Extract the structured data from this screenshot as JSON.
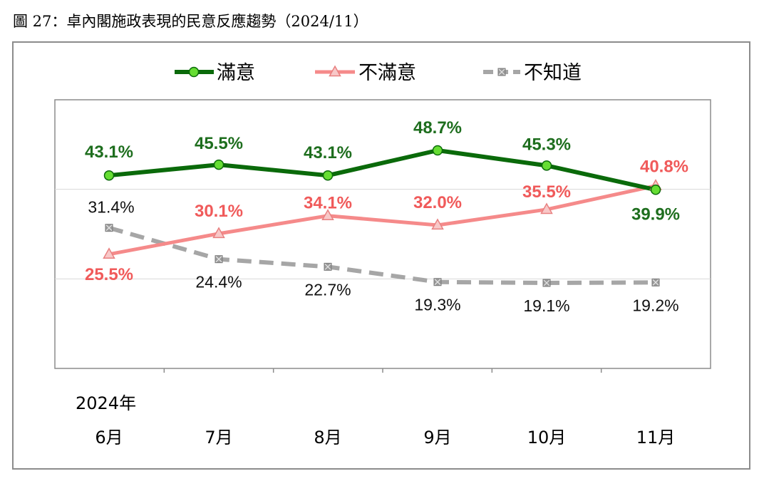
{
  "figure_title": "圖 27：卓內閣施政表現的民意反應趨勢（2024/11）",
  "colors": {
    "satisfied": "#0a6a0a",
    "satisfied_marker": "#66dd33",
    "dissatisfied": "#f58a8a",
    "dissatisfied_label": "#f05a5a",
    "unknown": "#a6a6a6"
  },
  "chart_data": {
    "type": "line",
    "title": "",
    "x_year_label": "2024年",
    "categories": [
      "6月",
      "7月",
      "8月",
      "9月",
      "10月",
      "11月"
    ],
    "ylim": [
      0,
      60
    ],
    "grid": true,
    "legend_position": "top",
    "series": [
      {
        "name": "滿意",
        "values": [
          43.1,
          45.5,
          43.1,
          48.7,
          45.3,
          39.9
        ],
        "labels": [
          "43.1%",
          "45.5%",
          "43.1%",
          "48.7%",
          "45.3%",
          "39.9%"
        ]
      },
      {
        "name": "不滿意",
        "values": [
          25.5,
          30.1,
          34.1,
          32.0,
          35.5,
          40.8
        ],
        "labels": [
          "25.5%",
          "30.1%",
          "34.1%",
          "32.0%",
          "35.5%",
          "40.8%"
        ]
      },
      {
        "name": "不知道",
        "values": [
          31.4,
          24.4,
          22.7,
          19.3,
          19.1,
          19.2
        ],
        "labels": [
          "31.4%",
          "24.4%",
          "22.7%",
          "19.3%",
          "19.1%",
          "19.2%"
        ]
      }
    ]
  }
}
